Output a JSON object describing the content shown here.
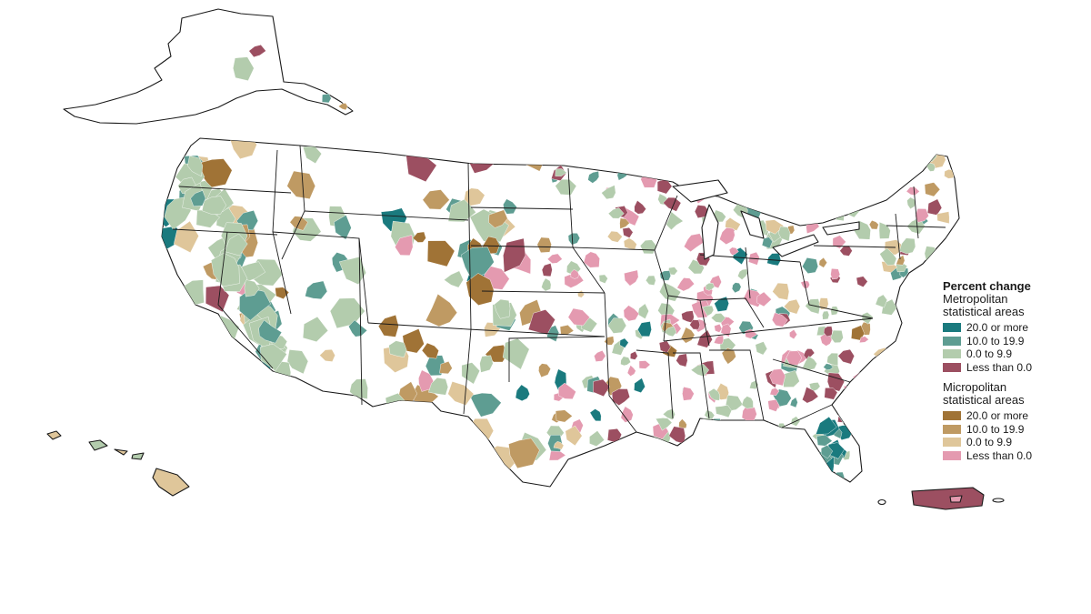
{
  "legend": {
    "title": "Percent change",
    "metro": {
      "heading_line1": "Metropolitan",
      "heading_line2": "statistical areas",
      "items": [
        {
          "label": "20.0 or more",
          "color": "#1a7a7e"
        },
        {
          "label": "10.0 to 19.9",
          "color": "#5e9d92"
        },
        {
          "label": "0.0 to 9.9",
          "color": "#b3ccad"
        },
        {
          "label": "Less than 0.0",
          "color": "#9c4f61"
        }
      ]
    },
    "micro": {
      "heading_line1": "Micropolitan",
      "heading_line2": "statistical areas",
      "items": [
        {
          "label": "20.0 or more",
          "color": "#a07336"
        },
        {
          "label": "10.0 to 19.9",
          "color": "#bf9a63"
        },
        {
          "label": "0.0 to 9.9",
          "color": "#dfc69a"
        },
        {
          "label": "Less than 0.0",
          "color": "#e49ab0"
        }
      ]
    }
  },
  "map": {
    "regions": [
      "Contiguous United States",
      "Alaska",
      "Hawaii",
      "Puerto Rico"
    ],
    "unit_colors": {
      "metro_high": "#1a7a7e",
      "metro_mid": "#5e9d92",
      "metro_low": "#b3ccad",
      "metro_neg": "#9c4f61",
      "micro_high": "#a07336",
      "micro_mid": "#bf9a63",
      "micro_low": "#dfc69a",
      "micro_neg": "#e49ab0"
    }
  }
}
